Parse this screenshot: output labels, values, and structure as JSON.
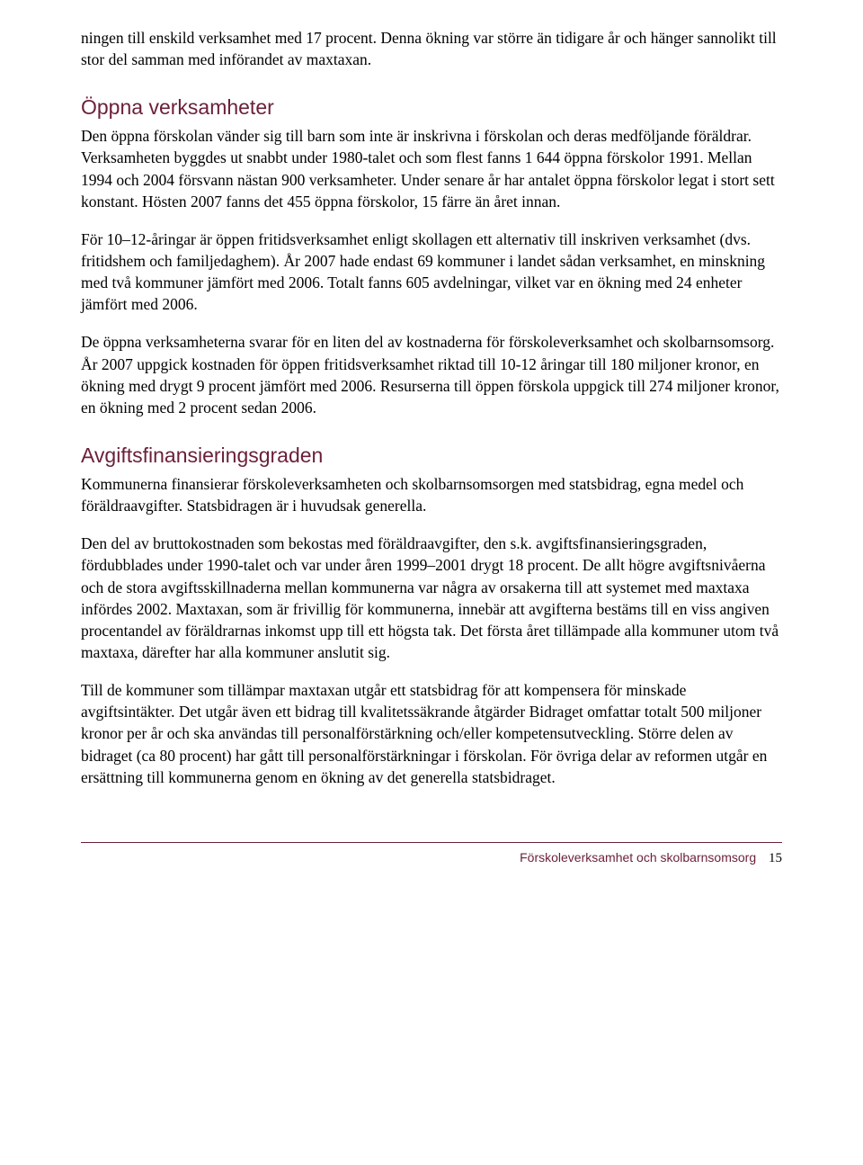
{
  "colors": {
    "heading": "#6b1f3a",
    "body": "#000000",
    "rule": "#6b1f3a",
    "background": "#ffffff"
  },
  "intro_para": "ningen till enskild verksamhet med 17 procent. Denna ökning var större än tidigare år och hänger sannolikt till stor del samman med införandet av maxtaxan.",
  "section1": {
    "heading": "Öppna verksamheter",
    "p1": "Den öppna förskolan vänder sig till barn som inte är inskrivna i förskolan och deras medföljande föräldrar. Verksamheten byggdes ut snabbt under 1980-talet och som flest fanns 1 644 öppna förskolor 1991. Mellan 1994 och 2004 försvann nästan 900 verksamheter. Under senare år har antalet öppna förskolor legat i stort sett konstant. Hösten 2007 fanns det 455 öppna förskolor, 15 färre än året innan.",
    "p2": "För 10–12-åringar är öppen fritidsverksamhet enligt skollagen ett alternativ till inskriven verksamhet (dvs. fritidshem och familjedaghem). År 2007 hade endast 69 kommuner i landet sådan verksamhet, en minskning med två kommuner jämfört med 2006. Totalt fanns 605 avdelningar, vilket var en ökning med 24 enheter jämfört med 2006.",
    "p3": "De öppna verksamheterna svarar för en liten del av kostnaderna för förskoleverksamhet och skolbarnsomsorg. År 2007 uppgick kostnaden för öppen fritidsverksamhet riktad till 10-12 åringar till 180 miljoner kronor, en ökning med drygt 9 procent jämfört med 2006. Resurserna till öppen förskola uppgick till 274 miljoner kronor, en ökning med 2 procent sedan 2006."
  },
  "section2": {
    "heading": "Avgiftsfinansieringsgraden",
    "p1": "Kommunerna finansierar förskoleverksamheten och skolbarnsomsorgen med statsbidrag, egna medel och föräldraavgifter. Statsbidragen är i huvudsak generella.",
    "p2": "Den del av bruttokostnaden som bekostas med föräldraavgifter, den s.k. avgiftsfinansieringsgraden, fördubblades under 1990-talet och var under åren 1999–2001 drygt 18 procent. De allt högre avgiftsnivåerna och de stora avgiftsskillnaderna mellan kommunerna var några av orsakerna till att systemet med maxtaxa infördes 2002. Maxtaxan, som är frivillig för kommunerna, innebär att avgifterna bestäms till en viss angiven procentandel av föräldrarnas inkomst upp till ett högsta tak. Det första året tillämpade alla kommuner utom två maxtaxa, därefter har alla kommuner anslutit sig.",
    "p3": "Till de kommuner som tillämpar maxtaxan utgår ett statsbidrag för att kompensera för minskade avgiftsintäkter. Det utgår även ett bidrag till kvalitetssäkrande åtgärder Bidraget omfattar totalt 500 miljoner kronor per år och ska användas till personalförstärkning och/eller kompetensutveckling. Större delen av bidraget (ca 80 procent) har gått till personalförstärkningar i förskolan. För övriga delar av reformen utgår en ersättning till kommunerna genom en ökning av det generella statsbidraget."
  },
  "footer": {
    "label": "Förskoleverksamhet och skolbarnsomsorg",
    "page": "15"
  }
}
